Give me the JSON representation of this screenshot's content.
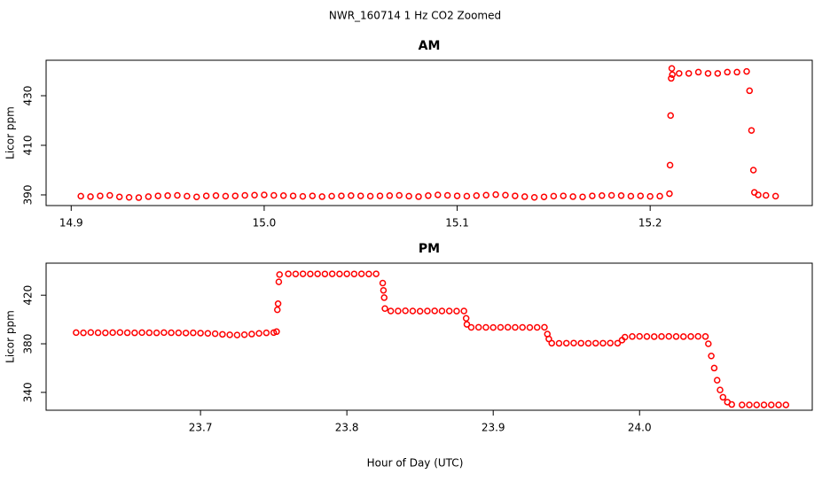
{
  "title": "NWR_160714  1 Hz CO2 Zoomed",
  "x_label": "Hour of Day (UTC)",
  "chart_data": [
    {
      "type": "scatter",
      "title": "AM",
      "y_label": "Licor ppm",
      "color": "#ff0000",
      "xlim": [
        14.887,
        15.284
      ],
      "ylim": [
        385.7,
        444.3
      ],
      "xticks": [
        14.9,
        {
          "value": 15,
          "label": "15.0"
        },
        15.1,
        15.2
      ],
      "yticks": [
        390,
        410,
        430
      ],
      "x": [
        14.905,
        14.91,
        14.915,
        14.92,
        14.925,
        14.93,
        14.935,
        14.94,
        14.945,
        14.95,
        14.955,
        14.96,
        14.965,
        14.97,
        14.975,
        14.98,
        14.985,
        14.99,
        14.995,
        15.0,
        15.005,
        15.01,
        15.015,
        15.02,
        15.025,
        15.03,
        15.035,
        15.04,
        15.045,
        15.05,
        15.055,
        15.06,
        15.065,
        15.07,
        15.075,
        15.08,
        15.085,
        15.09,
        15.095,
        15.1,
        15.105,
        15.11,
        15.115,
        15.12,
        15.125,
        15.13,
        15.135,
        15.14,
        15.145,
        15.15,
        15.155,
        15.16,
        15.165,
        15.17,
        15.175,
        15.18,
        15.185,
        15.19,
        15.195,
        15.2,
        15.205,
        15.21,
        15.2103,
        15.2106,
        15.2109,
        15.2112,
        15.2115,
        15.215,
        15.22,
        15.225,
        15.23,
        15.235,
        15.24,
        15.245,
        15.25,
        15.2515,
        15.2525,
        15.2535,
        15.254,
        15.256,
        15.26,
        15.265
      ],
      "values": [
        389.5,
        389.3,
        389.6,
        389.8,
        389.2,
        389.0,
        388.9,
        389.3,
        389.6,
        389.7,
        389.8,
        389.5,
        389.2,
        389.6,
        389.7,
        389.5,
        389.6,
        389.8,
        389.9,
        390.0,
        389.8,
        389.7,
        389.6,
        389.4,
        389.6,
        389.3,
        389.5,
        389.6,
        389.7,
        389.6,
        389.5,
        389.6,
        389.7,
        389.8,
        389.5,
        389.3,
        389.7,
        390.0,
        389.8,
        389.6,
        389.5,
        389.7,
        389.9,
        390.1,
        389.9,
        389.6,
        389.3,
        389.0,
        389.2,
        389.5,
        389.6,
        389.3,
        389.2,
        389.6,
        389.7,
        389.8,
        389.7,
        389.5,
        389.6,
        389.4,
        389.5,
        390.5,
        402,
        422,
        437,
        441,
        438.5,
        439,
        439,
        439.5,
        439,
        439,
        439.5,
        439.5,
        439.8,
        432,
        416,
        400,
        391,
        390,
        389.8,
        389.5
      ]
    },
    {
      "type": "scatter",
      "title": "PM",
      "y_label": "Licor ppm",
      "color": "#ff0000",
      "xlim": [
        23.5945,
        24.118
      ],
      "ylim": [
        325.3,
        446.4
      ],
      "xticks": [
        23.7,
        23.8,
        23.9,
        {
          "value": 24,
          "label": "24.0"
        }
      ],
      "yticks": [
        340,
        380,
        420
      ],
      "x": [
        23.615,
        23.62,
        23.625,
        23.63,
        23.635,
        23.64,
        23.645,
        23.65,
        23.655,
        23.66,
        23.665,
        23.67,
        23.675,
        23.68,
        23.685,
        23.69,
        23.695,
        23.7,
        23.705,
        23.71,
        23.715,
        23.72,
        23.725,
        23.73,
        23.735,
        23.74,
        23.745,
        23.75,
        23.752,
        23.7525,
        23.753,
        23.7535,
        23.754,
        23.76,
        23.765,
        23.77,
        23.775,
        23.78,
        23.785,
        23.79,
        23.795,
        23.8,
        23.805,
        23.81,
        23.815,
        23.82,
        23.8245,
        23.825,
        23.8255,
        23.826,
        23.83,
        23.835,
        23.84,
        23.845,
        23.85,
        23.855,
        23.86,
        23.865,
        23.87,
        23.875,
        23.88,
        23.8815,
        23.882,
        23.885,
        23.89,
        23.895,
        23.9,
        23.905,
        23.91,
        23.915,
        23.92,
        23.925,
        23.93,
        23.935,
        23.937,
        23.938,
        23.94,
        23.945,
        23.95,
        23.955,
        23.96,
        23.965,
        23.97,
        23.975,
        23.98,
        23.985,
        23.988,
        23.99,
        23.995,
        24.0,
        24.005,
        24.01,
        24.015,
        24.02,
        24.025,
        24.03,
        24.035,
        24.04,
        24.045,
        24.047,
        24.049,
        24.051,
        24.053,
        24.055,
        24.057,
        24.06,
        24.063,
        24.07,
        24.075,
        24.08,
        24.085,
        24.09,
        24.095,
        24.1
      ],
      "values": [
        389.2,
        389.0,
        389.3,
        389.1,
        389.0,
        389.2,
        389.3,
        389.1,
        389.0,
        389.2,
        389.1,
        389.0,
        389.2,
        389.1,
        389.0,
        388.9,
        389.0,
        388.8,
        388.6,
        388.3,
        387.8,
        387.4,
        387.2,
        387.5,
        388.0,
        388.6,
        389.0,
        389.2,
        390,
        408,
        413,
        431,
        437,
        437.6,
        437.5,
        437.6,
        437.5,
        437.6,
        437.5,
        437.6,
        437.5,
        437.6,
        437.5,
        437.6,
        437.5,
        437.6,
        430,
        424,
        418,
        409,
        407,
        407,
        407.2,
        407,
        406.8,
        407,
        407.1,
        407,
        407,
        406.9,
        407,
        401,
        396,
        393.5,
        393.6,
        393.5,
        393.4,
        393.5,
        393.6,
        393.5,
        393.5,
        393.4,
        393.5,
        393.6,
        388,
        384,
        380.5,
        380.4,
        380.5,
        380.6,
        380.5,
        380.4,
        380.5,
        380.5,
        380.6,
        380.5,
        383,
        385.5,
        386,
        386.1,
        386,
        385.9,
        386,
        386.1,
        386,
        385.9,
        386,
        386.1,
        386,
        380,
        370,
        360,
        350,
        342,
        336,
        332,
        330,
        329.7,
        329.7,
        329.7,
        329.7,
        329.7,
        329.7,
        329.7
      ]
    }
  ]
}
